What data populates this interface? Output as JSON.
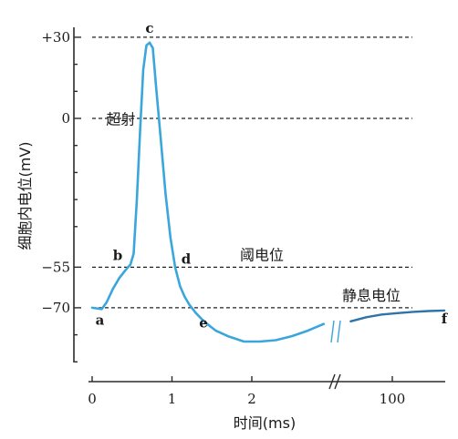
{
  "chart_data": {
    "type": "line",
    "title": "",
    "xlabel": "时间(ms)",
    "ylabel": "细胞内电位(mV)",
    "x_tick_labels": [
      {
        "value": 0,
        "label": "0"
      },
      {
        "value": 1,
        "label": "1"
      },
      {
        "value": 2,
        "label": "2"
      },
      {
        "value": 100,
        "label": "100"
      }
    ],
    "y_tick_labels": [
      {
        "value": 30,
        "label": "+30"
      },
      {
        "value": 0,
        "label": "0"
      },
      {
        "value": -55,
        "label": "−55"
      },
      {
        "value": -70,
        "label": "−70"
      }
    ],
    "x_axis_break": [
      3.0,
      90
    ],
    "xlim": [
      0,
      110
    ],
    "ylim": [
      -90,
      40
    ],
    "grid": false,
    "colors": {
      "curve": "#3aa6dc",
      "curve_tail": "#2f74a8",
      "axis": "#2b2b2b",
      "text": "#1a1a1a"
    },
    "reference_lines": [
      {
        "y": 30
      },
      {
        "y": 0
      },
      {
        "y": -55,
        "label": "阈电位"
      },
      {
        "y": -70,
        "label": "静息电位"
      }
    ],
    "annotations": [
      {
        "text": "超射",
        "x": 0.05,
        "y": 15
      }
    ],
    "series": [
      {
        "x": [
          0.0,
          0.12,
          0.18,
          0.26,
          0.34,
          0.42,
          0.48,
          0.52,
          0.56,
          0.6,
          0.64,
          0.68,
          0.72,
          0.76,
          0.8,
          0.86,
          0.92,
          0.98,
          1.04,
          1.1,
          1.16,
          1.22,
          1.3,
          1.4,
          1.55,
          1.7,
          1.9,
          2.1,
          2.3,
          2.5,
          2.7,
          2.9
        ],
        "y": [
          -70,
          -70.5,
          -68,
          -63,
          -59,
          -56,
          -54,
          -50,
          -30,
          -5,
          18,
          27,
          28,
          26,
          12,
          -8,
          -28,
          -44,
          -55,
          -62,
          -66,
          -69,
          -72,
          -75,
          -78.5,
          -80.5,
          -82.5,
          -82.5,
          -82,
          -80.5,
          -78.5,
          -76
        ]
      },
      {
        "x": [
          92,
          95,
          98,
          101,
          104,
          107,
          110
        ],
        "y": [
          -75,
          -73.5,
          -72.5,
          -72,
          -71.5,
          -71.2,
          -71
        ]
      }
    ],
    "points": [
      {
        "label": "a",
        "x": 0.12,
        "y": -70.5
      },
      {
        "label": "b",
        "x": 0.48,
        "y": -54
      },
      {
        "label": "c",
        "x": 0.72,
        "y": 28
      },
      {
        "label": "d",
        "x": 1.04,
        "y": -55
      },
      {
        "label": "e",
        "x": 1.28,
        "y": -71.5
      },
      {
        "label": "f",
        "x": 110,
        "y": -71
      }
    ]
  }
}
